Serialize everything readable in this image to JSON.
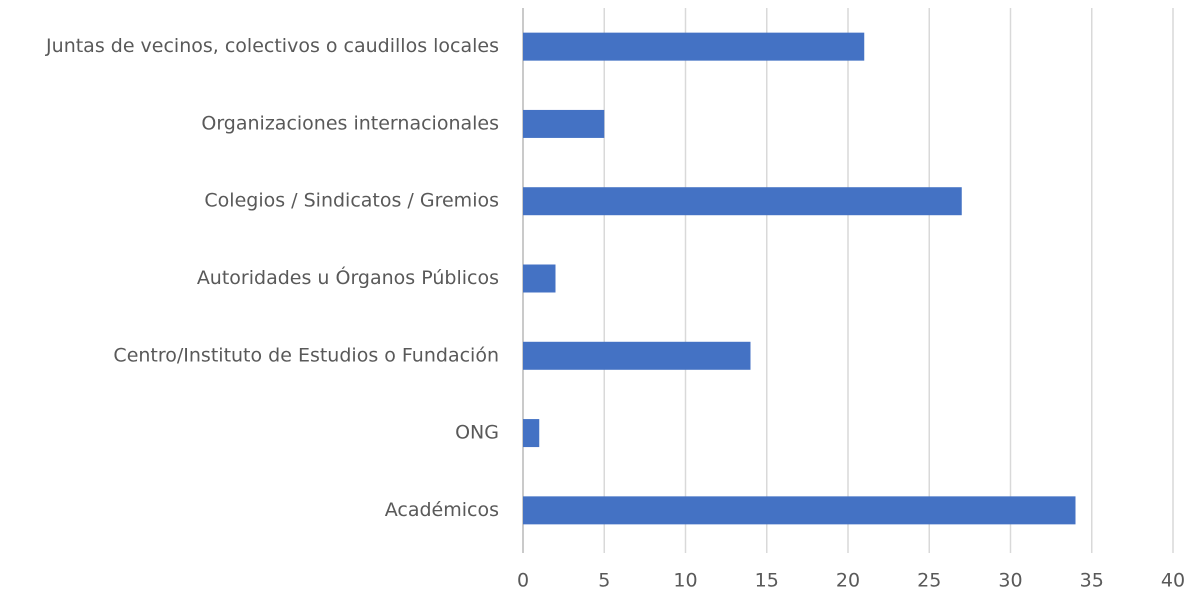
{
  "chart_data": {
    "type": "bar",
    "orientation": "horizontal",
    "categories": [
      "Juntas de vecinos, colectivos o caudillos locales",
      "Organizaciones internacionales",
      "Colegios / Sindicatos / Gremios",
      "Autoridades u Órganos Públicos",
      "Centro/Instituto de Estudios o Fundación",
      "ONG",
      "Académicos"
    ],
    "values": [
      21,
      5,
      27,
      2,
      14,
      1,
      34
    ],
    "color": "#4472c4",
    "xlim": [
      0,
      40
    ],
    "xticks": [
      0,
      5,
      10,
      15,
      20,
      25,
      30,
      35,
      40
    ],
    "grid": true
  }
}
